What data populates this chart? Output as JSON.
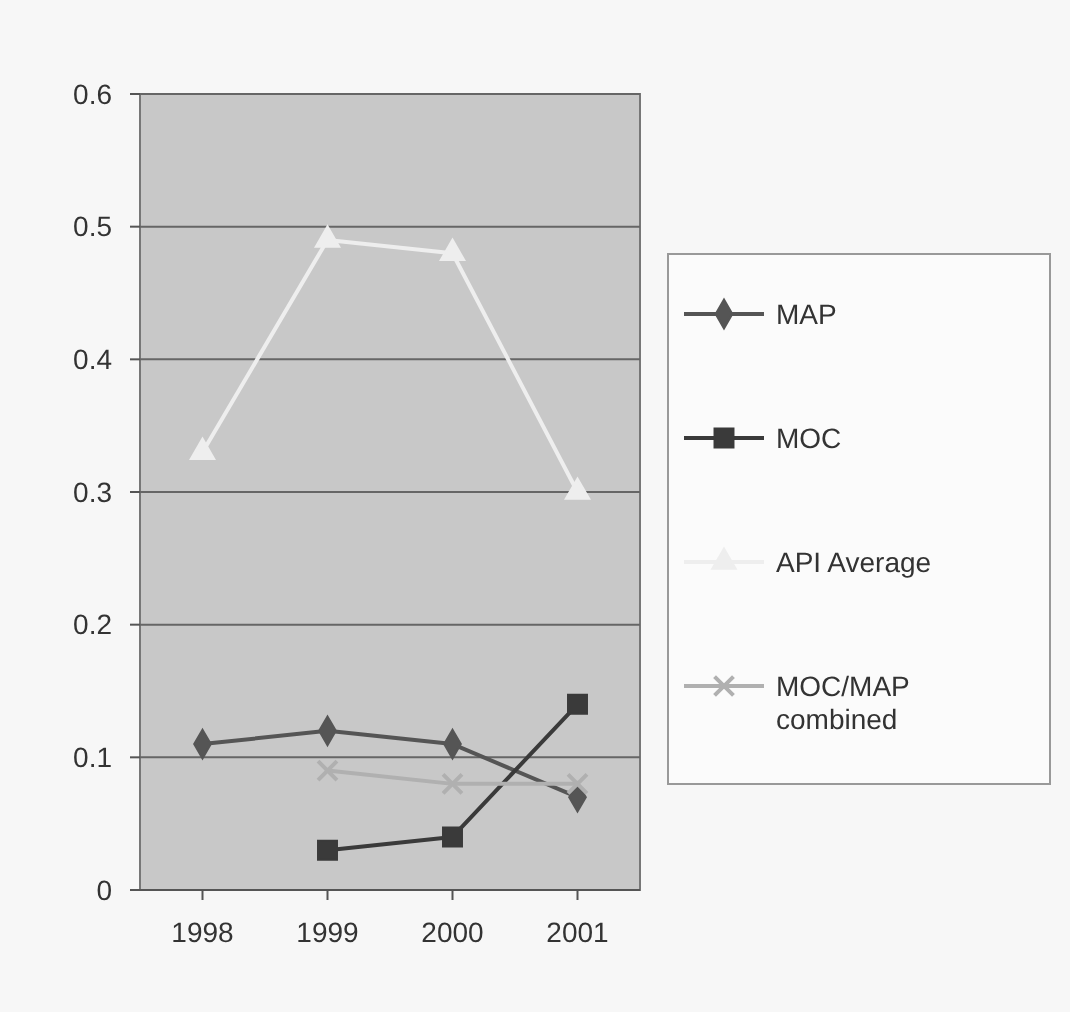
{
  "chart_data": {
    "type": "line",
    "categories": [
      "1998",
      "1999",
      "2000",
      "2001"
    ],
    "series": [
      {
        "name": "MAP",
        "color": "#555555",
        "marker": "diamond",
        "values": [
          0.11,
          0.12,
          0.11,
          0.07
        ]
      },
      {
        "name": "MOC",
        "color": "#3a3a3a",
        "marker": "square",
        "values": [
          null,
          0.03,
          0.04,
          0.14
        ]
      },
      {
        "name": "API Average",
        "color": "#eeeeee",
        "marker": "triangle",
        "values": [
          0.33,
          0.49,
          0.48,
          0.3
        ]
      },
      {
        "name": "MOC/MAP combined",
        "color": "#b0b0b0",
        "marker": "cross",
        "values": [
          null,
          0.09,
          0.08,
          0.08
        ]
      }
    ],
    "ylim": [
      0,
      0.6
    ],
    "yticks": [
      0,
      0.1,
      0.2,
      0.3,
      0.4,
      0.5,
      0.6
    ],
    "grid": "y",
    "legend": "right"
  }
}
